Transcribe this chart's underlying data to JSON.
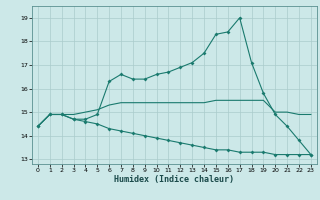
{
  "xlabel": "Humidex (Indice chaleur)",
  "bg_color": "#cce8e8",
  "grid_color": "#aacccc",
  "line_color": "#1a7a6e",
  "xlim": [
    -0.5,
    23.5
  ],
  "ylim": [
    12.8,
    19.5
  ],
  "yticks": [
    13,
    14,
    15,
    16,
    17,
    18,
    19
  ],
  "xticks": [
    0,
    1,
    2,
    3,
    4,
    5,
    6,
    7,
    8,
    9,
    10,
    11,
    12,
    13,
    14,
    15,
    16,
    17,
    18,
    19,
    20,
    21,
    22,
    23
  ],
  "line1_x": [
    0,
    1,
    2,
    3,
    4,
    5,
    6,
    7,
    8,
    9,
    10,
    11,
    12,
    13,
    14,
    15,
    16,
    17,
    18,
    19,
    20,
    21,
    22,
    23
  ],
  "line1_y": [
    14.4,
    14.9,
    14.9,
    14.7,
    14.7,
    14.9,
    16.3,
    16.6,
    16.4,
    16.4,
    16.6,
    16.7,
    16.9,
    17.1,
    17.5,
    18.3,
    18.4,
    19.0,
    17.1,
    15.8,
    14.9,
    14.4,
    13.8,
    13.2
  ],
  "line2_x": [
    0,
    1,
    2,
    3,
    4,
    5,
    6,
    7,
    8,
    9,
    10,
    11,
    12,
    13,
    14,
    15,
    16,
    17,
    18,
    19,
    20,
    21,
    22,
    23
  ],
  "line2_y": [
    14.4,
    14.9,
    14.9,
    14.9,
    15.0,
    15.1,
    15.3,
    15.4,
    15.4,
    15.4,
    15.4,
    15.4,
    15.4,
    15.4,
    15.4,
    15.5,
    15.5,
    15.5,
    15.5,
    15.5,
    15.0,
    15.0,
    14.9,
    14.9
  ],
  "line3_x": [
    0,
    1,
    2,
    3,
    4,
    5,
    6,
    7,
    8,
    9,
    10,
    11,
    12,
    13,
    14,
    15,
    16,
    17,
    18,
    19,
    20,
    21,
    22,
    23
  ],
  "line3_y": [
    14.4,
    14.9,
    14.9,
    14.7,
    14.6,
    14.5,
    14.3,
    14.2,
    14.1,
    14.0,
    13.9,
    13.8,
    13.7,
    13.6,
    13.5,
    13.4,
    13.4,
    13.3,
    13.3,
    13.3,
    13.2,
    13.2,
    13.2,
    13.2
  ]
}
